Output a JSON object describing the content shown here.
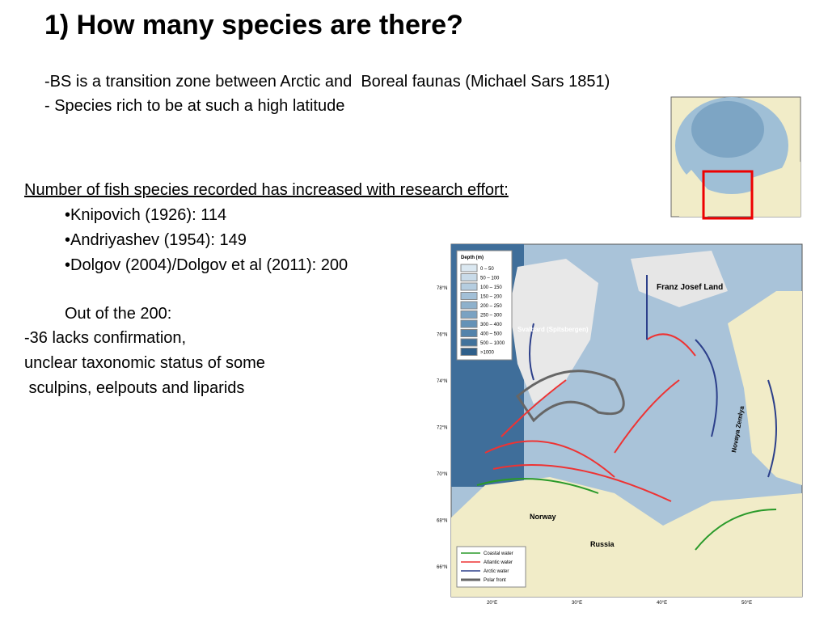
{
  "title": "1) How many species are there?",
  "intro": [
    "-BS is a transition zone between Arctic and  Boreal faunas (Michael Sars 1851)",
    "- Species rich to be at such a high latitude"
  ],
  "heading": "Number of fish species recorded has increased with research effort:",
  "records": [
    "•Knipovich (1926): 114",
    "•Andriyashev (1954): 149",
    "•Dolgov (2004)/Dolgov et al (2011): 200"
  ],
  "subheading": "Out of the 200:",
  "notes": [
    "-36 lacks confirmation,",
    "unclear taxonomic status of some",
    " sculpins, eelpouts and liparids"
  ],
  "map": {
    "places": [
      "Franz Josef Land",
      "Svalbard (Spitsbergen)",
      "Novaya Zemlya",
      "Norway",
      "Russia"
    ],
    "depth_title": "Depth (m)",
    "depth_bins": [
      "0 – 50",
      "50 – 100",
      "100 – 150",
      "150 – 200",
      "200 – 250",
      "250 – 300",
      "300 – 400",
      "400 – 500",
      "500 – 1000",
      ">1000"
    ],
    "currents": [
      "Coastal water",
      "Atlantic water",
      "Arctic water",
      "Polar front"
    ],
    "lat_labels": [
      "78°N",
      "76°N",
      "74°N",
      "72°N",
      "70°N",
      "68°N",
      "66°N"
    ],
    "lon_labels": [
      "20°E",
      "30°E",
      "40°E",
      "50°E"
    ]
  }
}
